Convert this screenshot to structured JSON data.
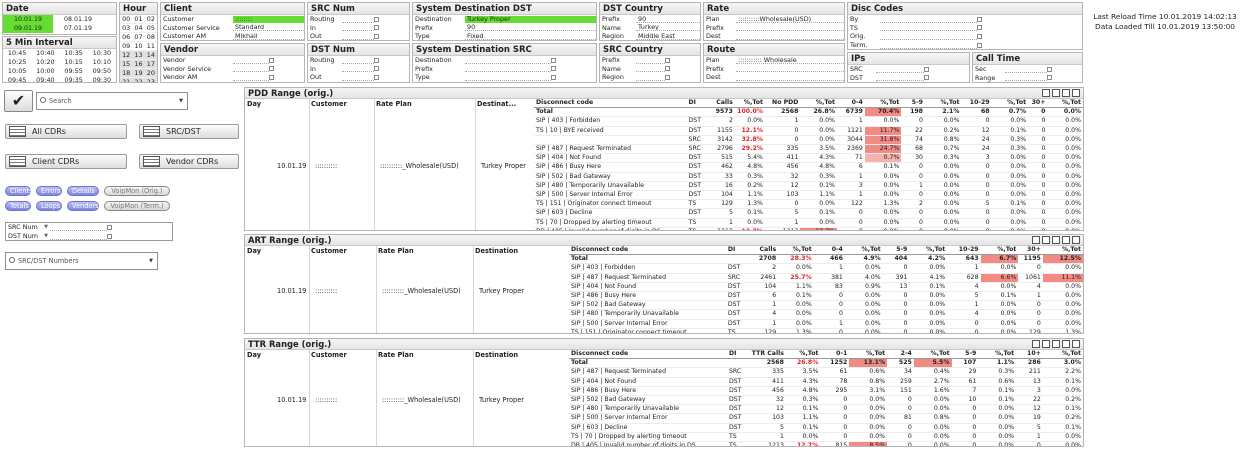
{
  "date": {
    "title": "Date",
    "rows": [
      [
        "10.01.19",
        "08.01.19"
      ],
      [
        "09.01.19",
        "07.01.19"
      ]
    ]
  },
  "hour": {
    "title": "Hour",
    "cells": [
      "00",
      "01",
      "02",
      "03",
      "04",
      "05",
      "06",
      "07",
      "08",
      "09",
      "10",
      "11",
      "12",
      "13",
      "14",
      "15",
      "16",
      "17",
      "18",
      "19",
      "20",
      "21",
      "22",
      "23"
    ]
  },
  "interval": {
    "title": "5 Min Interval",
    "cells": [
      "10:45",
      "10:40",
      "10:35",
      "10:30",
      "10:25",
      "10:20",
      "10:15",
      "10:10",
      "10:05",
      "10:00",
      "09:55",
      "09:50",
      "09:45",
      "09:40",
      "09:35",
      "09:30"
    ]
  },
  "client": {
    "title": "Client",
    "rows": [
      {
        "label": "Customer",
        "value": "::::::::",
        "sel": true
      },
      {
        "label": "Customer Service",
        "value": "Standard"
      },
      {
        "label": "Customer AM",
        "value": "Mikhail"
      }
    ]
  },
  "vendor": {
    "title": "Vendor",
    "rows": [
      {
        "label": "Vendor"
      },
      {
        "label": "Vendor Service"
      },
      {
        "label": "Vendor AM"
      }
    ]
  },
  "src_num": {
    "title": "SRC Num",
    "rows": [
      "Routing",
      "In",
      "Out"
    ]
  },
  "dst_num": {
    "title": "DST Num",
    "rows": [
      "Routing",
      "In",
      "Out"
    ]
  },
  "sys_dst": {
    "title": "System Destination DST",
    "rows": [
      {
        "label": "Destination",
        "value": "Turkey Proper",
        "sel": true
      },
      {
        "label": "Prefix",
        "value": "90"
      },
      {
        "label": "Type",
        "value": "Fixed"
      }
    ]
  },
  "sys_src": {
    "title": "System Destination SRC",
    "rows": [
      "Destination",
      "Prefix",
      "Type"
    ]
  },
  "dst_country": {
    "title": "DST Country",
    "rows": [
      {
        "label": "Prefix",
        "value": "90"
      },
      {
        "label": "Name",
        "value": "Turkey"
      },
      {
        "label": "Region",
        "value": "Middle East"
      }
    ]
  },
  "src_country": {
    "title": "SRC Country",
    "rows": [
      "Prefix",
      "Name",
      "Region"
    ]
  },
  "rate": {
    "title": "Rate",
    "rows": [
      {
        "label": "Plan",
        "value": "::::::::::Wholesale(USD)"
      },
      {
        "label": "Prefix",
        "value": ""
      },
      {
        "label": "Dest",
        "value": ""
      }
    ]
  },
  "route": {
    "title": "Route",
    "rows": [
      {
        "label": "Plan",
        "value": "::::::::::: Wholesale"
      },
      {
        "label": "Prefix",
        "value": ""
      },
      {
        "label": "Dest",
        "value": ""
      }
    ]
  },
  "disc": {
    "title": "Disc Codes",
    "rows": [
      "By",
      "TS",
      "Orig.",
      "Term."
    ]
  },
  "ips": {
    "title": "IPs",
    "rows": [
      "SRC",
      "DST"
    ]
  },
  "calltime": {
    "title": "Call Time",
    "rows": [
      "Sec",
      "Range"
    ]
  },
  "reload": {
    "line1": "Last Reload Time 10.01.2019 14:02:13",
    "line2": "Data Loaded Till 10.01.2019 13:50:00"
  },
  "left": {
    "search_placeholder": "Search",
    "buttons": {
      "all": "All CDRs",
      "srcdst": "SRC/DST",
      "client": "Client CDRs",
      "vendor": "Vendor CDRs"
    },
    "pills": [
      "Clients",
      "Errors",
      "Details",
      "VoipMon (Orig.)",
      "Totals",
      "Loops",
      "Vendors",
      "VoipMon (Term.)"
    ],
    "srcnum": "SRC Num",
    "dstnum": "DST Num",
    "numbers_placeholder": "SRC/DST Numbers"
  },
  "pdd": {
    "title": "PDD Range (orig.)",
    "left_headers": [
      "Day",
      "Customer",
      "Rate Plan",
      "Destinat..."
    ],
    "left_values": [
      "10.01.19",
      "::::::::::",
      "::::::::::_Wholesale(USD)",
      "Turkey Proper"
    ],
    "headers": [
      "Disconnect code",
      "DI",
      "Calls",
      "%,Tot",
      "No PDD",
      "%,Tot",
      "0-4",
      "%,Tot",
      "5-9",
      "%,Tot",
      "10-29",
      "%,Tot",
      "30+",
      "%,Tot"
    ],
    "total": [
      "Total",
      "",
      "9573",
      "100.0%",
      "2568",
      "26.8%",
      "6739",
      "70.4%",
      "198",
      "2.1%",
      "68",
      "0.7%",
      "0",
      "0.0%"
    ],
    "rows": [
      [
        "SIP | 403 | Forbidden",
        "DST",
        "2",
        "0.0%",
        "1",
        "0.0%",
        "1",
        "0.0%",
        "0",
        "0.0%",
        "0",
        "0.0%",
        "0",
        "0.0%"
      ],
      [
        "TS | 10 | BYE received",
        "DST",
        "1155",
        "12.1%",
        "0",
        "0.0%",
        "1121",
        "11.7%",
        "22",
        "0.2%",
        "12",
        "0.1%",
        "0",
        "0.0%"
      ],
      [
        "",
        "SRC",
        "3142",
        "32.8%",
        "0",
        "0.0%",
        "3044",
        "31.8%",
        "74",
        "0.8%",
        "24",
        "0.3%",
        "0",
        "0.0%"
      ],
      [
        "SIP | 487 | Request Terminated",
        "SRC",
        "2796",
        "29.2%",
        "335",
        "3.5%",
        "2369",
        "24.7%",
        "68",
        "0.7%",
        "24",
        "0.3%",
        "0",
        "0.0%"
      ],
      [
        "SIP | 404 | Not Found",
        "DST",
        "515",
        "5.4%",
        "411",
        "4.3%",
        "71",
        "0.7%",
        "30",
        "0.3%",
        "3",
        "0.0%",
        "0",
        "0.0%"
      ],
      [
        "SIP | 486 | Busy Here",
        "DST",
        "462",
        "4.8%",
        "456",
        "4.8%",
        "6",
        "0.1%",
        "0",
        "0.0%",
        "0",
        "0.0%",
        "0",
        "0.0%"
      ],
      [
        "SIP | 502 | Bad Gateway",
        "DST",
        "33",
        "0.3%",
        "32",
        "0.3%",
        "1",
        "0.0%",
        "0",
        "0.0%",
        "0",
        "0.0%",
        "0",
        "0.0%"
      ],
      [
        "SIP | 480 | Temporarily Unavailable",
        "DST",
        "16",
        "0.2%",
        "12",
        "0.1%",
        "3",
        "0.0%",
        "1",
        "0.0%",
        "0",
        "0.0%",
        "0",
        "0.0%"
      ],
      [
        "SIP | 500 | Server Internal Error",
        "DST",
        "104",
        "1.1%",
        "103",
        "1.1%",
        "1",
        "0.0%",
        "0",
        "0.0%",
        "0",
        "0.0%",
        "0",
        "0.0%"
      ],
      [
        "TS | 151 | Originator connect timeout",
        "TS",
        "129",
        "1.3%",
        "0",
        "0.0%",
        "122",
        "1.3%",
        "2",
        "0.0%",
        "5",
        "0.1%",
        "0",
        "0.0%"
      ],
      [
        "SIP | 603 | Decline",
        "DST",
        "5",
        "0.1%",
        "5",
        "0.1%",
        "0",
        "0.0%",
        "0",
        "0.0%",
        "0",
        "0.0%",
        "0",
        "0.0%"
      ],
      [
        "TS | 70 | Dropped by alerting timeout",
        "TS",
        "1",
        "0.0%",
        "1",
        "0.0%",
        "0",
        "0.0%",
        "0",
        "0.0%",
        "0",
        "0.0%",
        "0",
        "0.0%"
      ],
      [
        "DB | 405 | Invalid number of digits in DS...",
        "TS",
        "1213",
        "12.7%",
        "1213",
        "12.7%",
        "0",
        "0.0%",
        "0",
        "0.0%",
        "0",
        "0.0%",
        "0",
        "0.0%"
      ]
    ]
  },
  "art": {
    "title": "ART Range (orig.)",
    "left_headers": [
      "Day",
      "Customer",
      "Rate Plan",
      "Destination"
    ],
    "left_values": [
      "10.01.19",
      "::::::::::",
      "::::::::::_Wholesale(USD)",
      "Turkey Proper"
    ],
    "headers": [
      "Disconnect code",
      "DI",
      "Calls",
      "%,Tot",
      "0-4",
      "%,Tot",
      "5-9",
      "%,Tot",
      "10-29",
      "%,Tot",
      "30+",
      "%,Tot"
    ],
    "total": [
      "Total",
      "",
      "2708",
      "28.3%",
      "466",
      "4.9%",
      "404",
      "4.2%",
      "643",
      "6.7%",
      "1195",
      "12.5%"
    ],
    "rows": [
      [
        "SIP | 403 | Forbidden",
        "DST",
        "2",
        "0.0%",
        "1",
        "0.0%",
        "0",
        "0.0%",
        "1",
        "0.0%",
        "0",
        "0.0%"
      ],
      [
        "SIP | 487 | Request Terminated",
        "SRC",
        "2461",
        "25.7%",
        "381",
        "4.0%",
        "391",
        "4.1%",
        "628",
        "6.6%",
        "1061",
        "11.1%"
      ],
      [
        "SIP | 404 | Not Found",
        "DST",
        "104",
        "1.1%",
        "83",
        "0.9%",
        "13",
        "0.1%",
        "4",
        "0.0%",
        "4",
        "0.0%"
      ],
      [
        "SIP | 486 | Busy Here",
        "DST",
        "6",
        "0.1%",
        "0",
        "0.0%",
        "0",
        "0.0%",
        "5",
        "0.1%",
        "1",
        "0.0%"
      ],
      [
        "SIP | 502 | Bad Gateway",
        "DST",
        "1",
        "0.0%",
        "0",
        "0.0%",
        "0",
        "0.0%",
        "1",
        "0.0%",
        "0",
        "0.0%"
      ],
      [
        "SIP | 480 | Temporarily Unavailable",
        "DST",
        "4",
        "0.0%",
        "0",
        "0.0%",
        "0",
        "0.0%",
        "4",
        "0.0%",
        "0",
        "0.0%"
      ],
      [
        "SIP | 500 | Server Internal Error",
        "DST",
        "1",
        "0.0%",
        "1",
        "0.0%",
        "0",
        "0.0%",
        "0",
        "0.0%",
        "0",
        "0.0%"
      ],
      [
        "TS | 151 | Originator connect timeout",
        "TS",
        "129",
        "1.3%",
        "0",
        "0.0%",
        "0",
        "0.0%",
        "0",
        "0.0%",
        "129",
        "1.3%"
      ]
    ]
  },
  "ttr": {
    "title": "TTR Range (orig.)",
    "left_headers": [
      "Day",
      "Customer",
      "Rate Plan",
      "Destination"
    ],
    "left_values": [
      "10.01.19",
      "::::::::::",
      "::::::::::_Wholesale(USD)",
      "Turkey Proper"
    ],
    "headers": [
      "Disconnect code",
      "DI",
      "TTR Calls",
      "%,Tot",
      "0-1",
      "%,Tot",
      "2-4",
      "%,Tot",
      "5-9",
      "%,Tot",
      "10+",
      "%,Tot"
    ],
    "total": [
      "Total",
      "",
      "2568",
      "26.8%",
      "1252",
      "13.1%",
      "525",
      "5.5%",
      "107",
      "1.1%",
      "286",
      "3.0%"
    ],
    "rows": [
      [
        "SIP | 487 | Request Terminated",
        "SRC",
        "335",
        "3.5%",
        "61",
        "0.6%",
        "34",
        "0.4%",
        "29",
        "0.3%",
        "211",
        "2.2%"
      ],
      [
        "SIP | 404 | Not Found",
        "DST",
        "411",
        "4.3%",
        "78",
        "0.8%",
        "259",
        "2.7%",
        "61",
        "0.6%",
        "13",
        "0.1%"
      ],
      [
        "SIP | 486 | Busy Here",
        "DST",
        "456",
        "4.8%",
        "295",
        "3.1%",
        "151",
        "1.6%",
        "7",
        "0.1%",
        "3",
        "0.0%"
      ],
      [
        "SIP | 502 | Bad Gateway",
        "DST",
        "32",
        "0.3%",
        "0",
        "0.0%",
        "0",
        "0.0%",
        "10",
        "0.1%",
        "22",
        "0.2%"
      ],
      [
        "SIP | 480 | Temporarily Unavailable",
        "DST",
        "12",
        "0.1%",
        "0",
        "0.0%",
        "0",
        "0.0%",
        "0",
        "0.0%",
        "12",
        "0.1%"
      ],
      [
        "SIP | 500 | Server Internal Error",
        "DST",
        "103",
        "1.1%",
        "0",
        "0.0%",
        "81",
        "0.8%",
        "0",
        "0.0%",
        "19",
        "0.2%"
      ],
      [
        "SIP | 603 | Decline",
        "DST",
        "5",
        "0.1%",
        "0",
        "0.0%",
        "0",
        "0.0%",
        "0",
        "0.0%",
        "5",
        "0.1%"
      ],
      [
        "TS | 70 | Dropped by alerting timeout",
        "TS",
        "1",
        "0.0%",
        "0",
        "0.0%",
        "0",
        "0.0%",
        "0",
        "0.0%",
        "1",
        "0.0%"
      ],
      [
        "DB | 405 | Invalid number of digits in DS...",
        "TS",
        "1213",
        "12.7%",
        "815",
        "8.5%",
        "0",
        "0.0%",
        "0",
        "0.0%",
        "0",
        "0.0%"
      ]
    ]
  }
}
